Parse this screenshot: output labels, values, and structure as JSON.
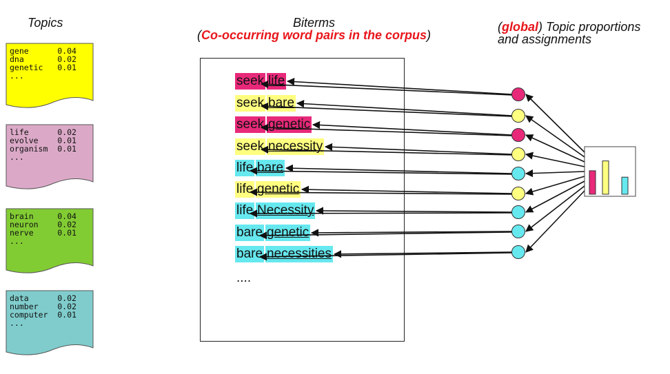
{
  "headers": {
    "topics": "Topics",
    "biterms_line1": "Biterms",
    "biterms_paren_open": "(",
    "biterms_line2": "Co-occurring word pairs in the corpus",
    "biterms_paren_close": ")",
    "global_paren_open": "(",
    "global_word": "global",
    "global_rest": ") Topic proportions",
    "global_line2": "and assignments"
  },
  "topics": [
    {
      "color": "#ffff00",
      "lines": [
        "gene      0.04",
        "dna       0.02",
        "genetic   0.01",
        "..."
      ]
    },
    {
      "color": "#dba9c7",
      "lines": [
        "life      0.02",
        "evolve    0.01",
        "organism  0.01",
        "..."
      ]
    },
    {
      "color": "#82cc33",
      "lines": [
        "brain     0.04",
        "neuron    0.02",
        "nerve     0.01",
        "..."
      ]
    },
    {
      "color": "#80cccc",
      "lines": [
        "data      0.02",
        "number    0.02",
        "computer  0.01",
        "..."
      ]
    }
  ],
  "topic_colors": {
    "magenta": "#e8297a",
    "yellow": "#ffff80",
    "cyan": "#66e8ef"
  },
  "biterms": [
    {
      "w1": "seek",
      "w2": "life",
      "color": "#e8297a"
    },
    {
      "w1": "seek",
      "w2": "bare",
      "color": "#ffff80"
    },
    {
      "w1": "seek",
      "w2": "genetic",
      "color": "#e8297a"
    },
    {
      "w1": "seek",
      "w2": "necessity",
      "color": "#ffff80"
    },
    {
      "w1": "life",
      "w2": "bare",
      "color": "#66e8ef"
    },
    {
      "w1": "life",
      "w2": "genetic",
      "color": "#ffff80"
    },
    {
      "w1": "life",
      "w2": "Necessity",
      "color": "#66e8ef"
    },
    {
      "w1": "bare",
      "w2": "genetic",
      "color": "#66e8ef"
    },
    {
      "w1": "bare",
      "w2": "necessities",
      "color": "#66e8ef"
    }
  ],
  "ellipsis": "....",
  "proportions": [
    {
      "color": "#e8297a",
      "value": 0.55
    },
    {
      "color": "#ffff80",
      "value": 0.78
    },
    {
      "color": "#66e8ef",
      "value": 0.4
    }
  ]
}
